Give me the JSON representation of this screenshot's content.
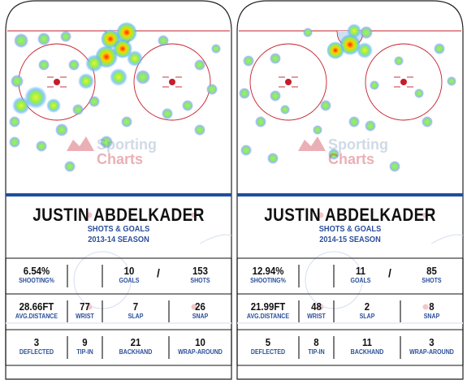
{
  "watermark": {
    "line1": "Sporting",
    "line2": "Charts"
  },
  "colors": {
    "blue_line": "#1d4f9e",
    "red_line": "#c41e2a",
    "label_blue": "#2a4f9a",
    "panel_border": "#111111"
  },
  "cards": [
    {
      "player": "JUSTIN ABDELKADER",
      "subtitle": "SHOTS & GOALS",
      "season": "2013-14 SEASON",
      "row1": {
        "shooting_pct": {
          "value": "6.54%",
          "label": "SHOOTING%"
        },
        "goals": {
          "value": "10",
          "label": "GOALS"
        },
        "slash": "/",
        "shots": {
          "value": "153",
          "label": "SHOTS"
        }
      },
      "row2": {
        "avg_distance": {
          "value": "28.66FT",
          "label": "AVG.DISTANCE"
        },
        "wrist": {
          "value": "77",
          "label": "WRIST"
        },
        "slap": {
          "value": "7",
          "label": "SLAP"
        },
        "snap": {
          "value": "26",
          "label": "SNAP"
        }
      },
      "row3": {
        "deflected": {
          "value": "3",
          "label": "DEFLECTED"
        },
        "tipin": {
          "value": "9",
          "label": "TIP-IN"
        },
        "backhand": {
          "value": "21",
          "label": "BACKHAND"
        },
        "wraparound": {
          "value": "10",
          "label": "WRAP-AROUND"
        }
      }
    },
    {
      "player": "JUSTIN ABDELKADER",
      "subtitle": "SHOTS & GOALS",
      "season": "2014-15 SEASON",
      "row1": {
        "shooting_pct": {
          "value": "12.94%",
          "label": "SHOOTING%"
        },
        "goals": {
          "value": "11",
          "label": "GOALS"
        },
        "slash": "/",
        "shots": {
          "value": "85",
          "label": "SHOTS"
        }
      },
      "row2": {
        "avg_distance": {
          "value": "21.99FT",
          "label": "AVG.DISTANCE"
        },
        "wrist": {
          "value": "48",
          "label": "WRIST"
        },
        "slap": {
          "value": "2",
          "label": "SLAP"
        },
        "snap": {
          "value": "8",
          "label": "SNAP"
        }
      },
      "row3": {
        "deflected": {
          "value": "5",
          "label": "DEFLECTED"
        },
        "tipin": {
          "value": "8",
          "label": "TIP-IN"
        },
        "backhand": {
          "value": "11",
          "label": "BACKHAND"
        },
        "wraparound": {
          "value": "3",
          "label": "WRAP-AROUND"
        }
      }
    }
  ]
}
